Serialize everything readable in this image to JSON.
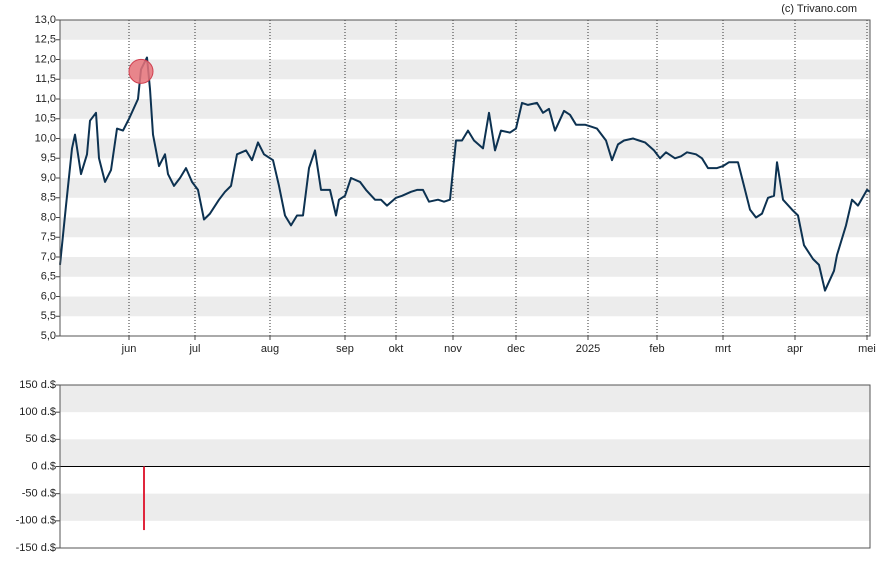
{
  "chart_data": [
    {
      "type": "line",
      "credit": "(c) Trivano.com",
      "color": "#0d3251",
      "xlim": [
        0,
        270
      ],
      "xticks": [
        {
          "value": 23,
          "label": "jun"
        },
        {
          "value": 45,
          "label": "jul"
        },
        {
          "value": 70,
          "label": "aug"
        },
        {
          "value": 95,
          "label": "sep"
        },
        {
          "value": 112,
          "label": "okt"
        },
        {
          "value": 131,
          "label": "nov"
        },
        {
          "value": 152,
          "label": "dec"
        },
        {
          "value": 176,
          "label": "2025"
        },
        {
          "value": 199,
          "label": "feb"
        },
        {
          "value": 221,
          "label": "mrt"
        },
        {
          "value": 245,
          "label": "apr"
        },
        {
          "value": 269,
          "label": "mei"
        }
      ],
      "ylim": [
        5,
        13
      ],
      "yticks": [
        {
          "value": 5,
          "label": "5,0"
        },
        {
          "value": 5.5,
          "label": "5,5"
        },
        {
          "value": 6,
          "label": "6,0"
        },
        {
          "value": 6.5,
          "label": "6,5"
        },
        {
          "value": 7,
          "label": "7,0"
        },
        {
          "value": 7.5,
          "label": "7,5"
        },
        {
          "value": 8,
          "label": "8,0"
        },
        {
          "value": 8.5,
          "label": "8,5"
        },
        {
          "value": 9,
          "label": "9,0"
        },
        {
          "value": 9.5,
          "label": "9,5"
        },
        {
          "value": 10,
          "label": "10,0"
        },
        {
          "value": 10.5,
          "label": "10,5"
        },
        {
          "value": 11,
          "label": "11,0"
        },
        {
          "value": 11.5,
          "label": "11,5"
        },
        {
          "value": 12,
          "label": "12,0"
        },
        {
          "value": 12.5,
          "label": "12,5"
        },
        {
          "value": 13,
          "label": "13,0"
        }
      ],
      "x": [
        0,
        2,
        4,
        5,
        7,
        9,
        10,
        12,
        13,
        15,
        17,
        19,
        21,
        23,
        26,
        27,
        29,
        30,
        31,
        33,
        35,
        36,
        38,
        40,
        42,
        44,
        46,
        48,
        50,
        53,
        55,
        57,
        59,
        62,
        64,
        66,
        68,
        71,
        73,
        75,
        77,
        79,
        81,
        83,
        85,
        87,
        90,
        92,
        93,
        95,
        97,
        100,
        102,
        105,
        107,
        109,
        112,
        114,
        117,
        119,
        121,
        123,
        126,
        128,
        130,
        132,
        134,
        136,
        138,
        141,
        143,
        145,
        147,
        150,
        152,
        154,
        156,
        159,
        161,
        163,
        165,
        168,
        170,
        172,
        175,
        177,
        179,
        182,
        184,
        186,
        188,
        191,
        193,
        195,
        198,
        200,
        202,
        205,
        207,
        209,
        212,
        214,
        216,
        219,
        221,
        223,
        226,
        228,
        230,
        232,
        234,
        236,
        238,
        239,
        241,
        244,
        246,
        248,
        251,
        253,
        255,
        258,
        259,
        262,
        264,
        266,
        269,
        270
      ],
      "values": [
        6.8,
        8.3,
        9.75,
        10.1,
        9.1,
        9.6,
        10.45,
        10.65,
        9.5,
        8.9,
        9.2,
        10.25,
        10.2,
        10.5,
        11.0,
        11.75,
        12.05,
        11.25,
        10.1,
        9.3,
        9.6,
        9.1,
        8.8,
        9.0,
        9.25,
        8.9,
        8.7,
        7.95,
        8.1,
        8.45,
        8.65,
        8.8,
        9.6,
        9.7,
        9.45,
        9.9,
        9.6,
        9.45,
        8.8,
        8.05,
        7.8,
        8.05,
        8.05,
        9.25,
        9.7,
        8.7,
        8.7,
        8.05,
        8.45,
        8.55,
        9.0,
        8.9,
        8.7,
        8.45,
        8.45,
        8.3,
        8.5,
        8.55,
        8.65,
        8.7,
        8.7,
        8.4,
        8.45,
        8.4,
        8.45,
        9.95,
        9.95,
        10.2,
        9.95,
        9.75,
        10.65,
        9.7,
        10.2,
        10.15,
        10.25,
        10.9,
        10.85,
        10.9,
        10.65,
        10.75,
        10.2,
        10.7,
        10.6,
        10.35,
        10.35,
        10.3,
        10.25,
        9.95,
        9.45,
        9.85,
        9.95,
        10.0,
        9.95,
        9.9,
        9.7,
        9.5,
        9.65,
        9.5,
        9.55,
        9.65,
        9.6,
        9.5,
        9.25,
        9.25,
        9.3,
        9.4,
        9.4,
        8.8,
        8.2,
        8.0,
        8.1,
        8.5,
        8.55,
        9.4,
        8.45,
        8.2,
        8.05,
        7.3,
        6.95,
        6.8,
        6.15,
        6.65,
        7.05,
        7.8,
        8.45,
        8.3,
        8.7,
        8.65
      ],
      "highlight": {
        "x": 27,
        "value": 11.7,
        "color": "#e8737a"
      }
    },
    {
      "type": "bar",
      "color": "#e0263c",
      "xlim": [
        0,
        270
      ],
      "ylim": [
        -150,
        150
      ],
      "yticks": [
        {
          "value": -150,
          "label": "-150 d.$"
        },
        {
          "value": -100,
          "label": "-100 d.$"
        },
        {
          "value": -50,
          "label": "-50 d.$"
        },
        {
          "value": 0,
          "label": "0 d.$"
        },
        {
          "value": 50,
          "label": "50 d.$"
        },
        {
          "value": 100,
          "label": "100 d.$"
        },
        {
          "value": 150,
          "label": "150 d.$"
        }
      ],
      "x": [
        28
      ],
      "values": [
        -117
      ]
    }
  ]
}
